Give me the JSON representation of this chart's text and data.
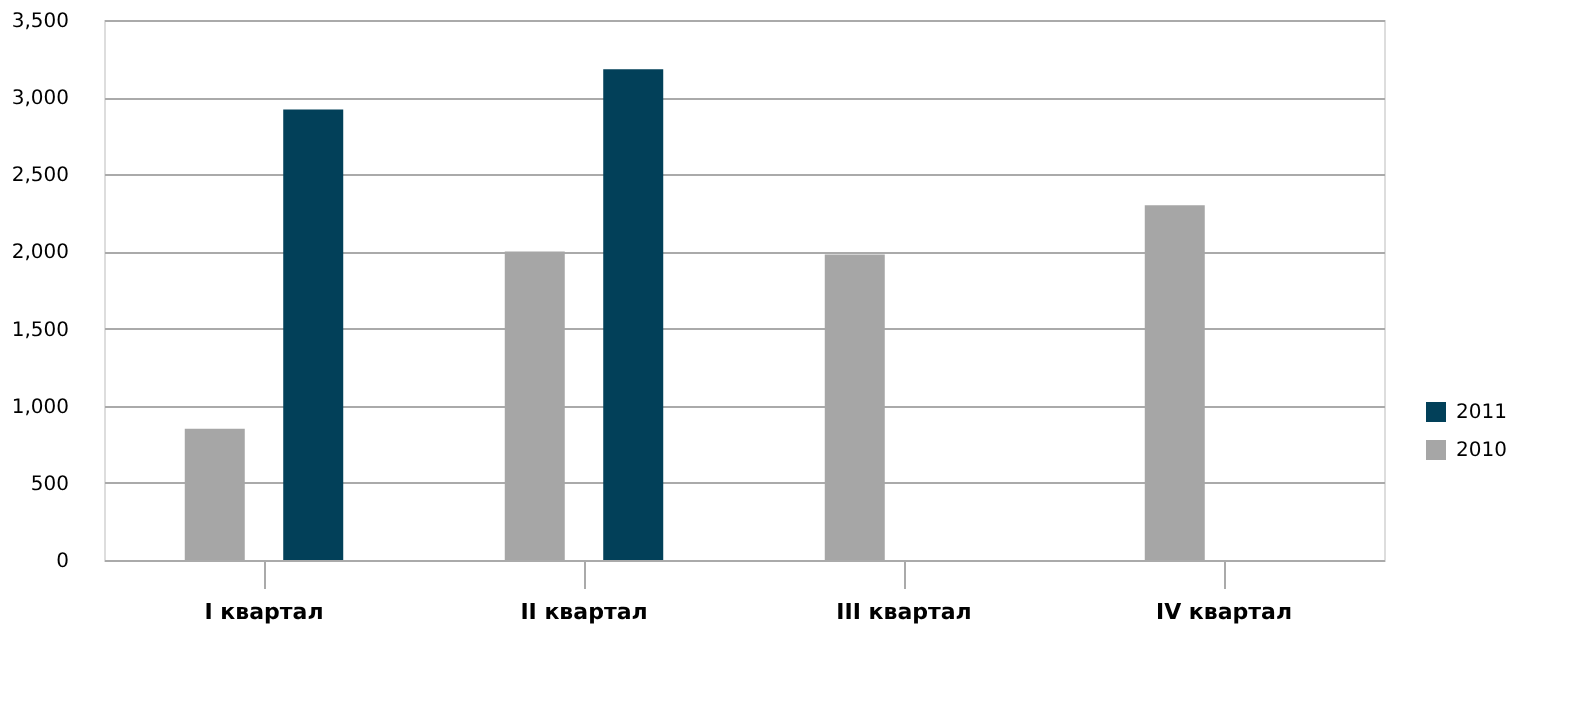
{
  "chart_data": {
    "type": "bar",
    "categories": [
      "I квартал",
      "II квартал",
      "III квартал",
      "IV квартал"
    ],
    "series": [
      {
        "name": "2010",
        "color": "#a6a6a6",
        "values": [
          850,
          2000,
          1980,
          2300
        ]
      },
      {
        "name": "2011",
        "color": "#024059",
        "values": [
          2920,
          3180,
          null,
          null
        ]
      }
    ],
    "ylim": [
      0,
      3500
    ],
    "yticks": [
      0,
      {
        "value": 500,
        "label": "500"
      },
      {
        "value": 1000,
        "label": "1,000"
      },
      {
        "value": 1500,
        "label": "1,500"
      },
      {
        "value": 2000,
        "label": "2,000"
      },
      {
        "value": 2500,
        "label": "2,500"
      },
      {
        "value": 3000,
        "label": "3,000"
      },
      {
        "value": 3500,
        "label": "3,500"
      }
    ],
    "grid": "y",
    "legend": "right"
  }
}
